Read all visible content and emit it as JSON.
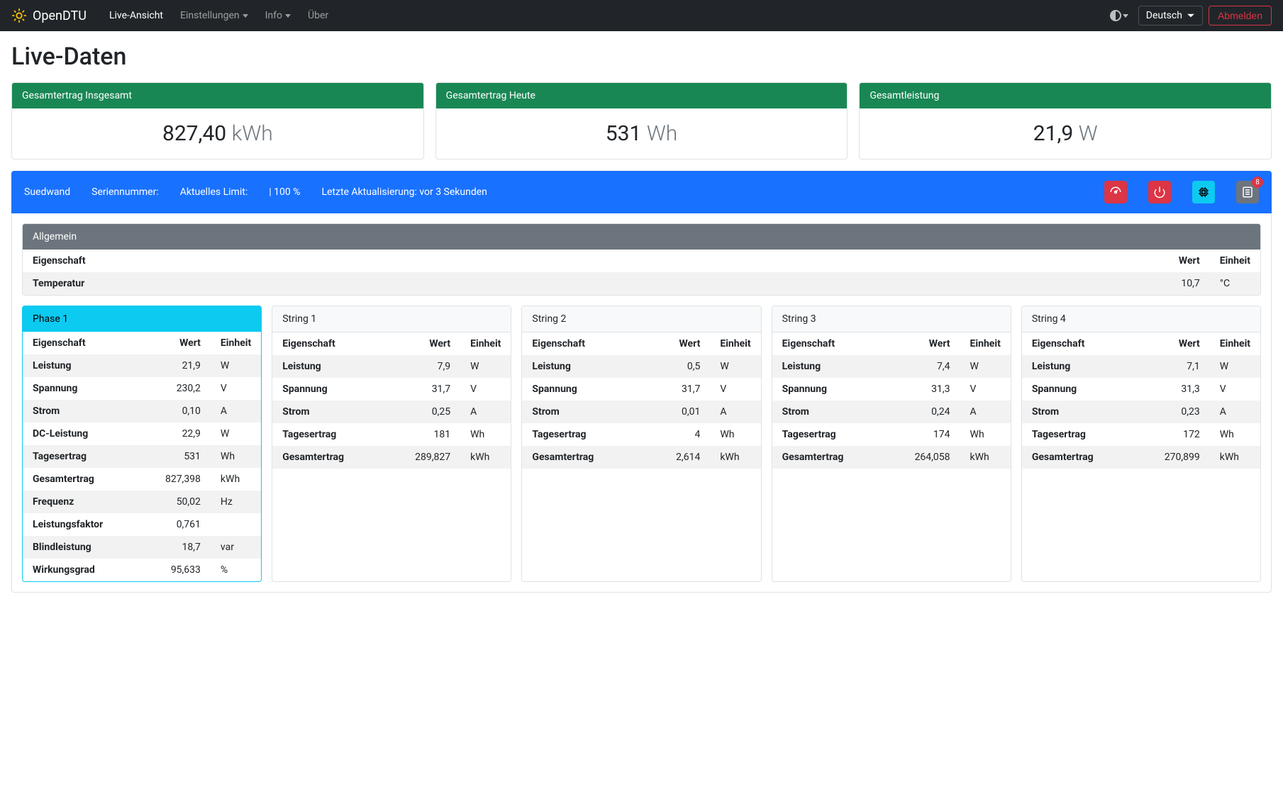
{
  "nav": {
    "brand": "OpenDTU",
    "live": "Live-Ansicht",
    "settings": "Einstellungen",
    "info": "Info",
    "about": "Über",
    "language": "Deutsch",
    "logout": "Abmelden"
  },
  "title": "Live-Daten",
  "summary": [
    {
      "label": "Gesamtertrag Insgesamt",
      "value": "827,40",
      "unit": "kWh"
    },
    {
      "label": "Gesamtertrag Heute",
      "value": "531",
      "unit": "Wh"
    },
    {
      "label": "Gesamtleistung",
      "value": "21,9",
      "unit": "W"
    }
  ],
  "inverter": {
    "name": "Suedwand",
    "serial_label": "Seriennummer:",
    "limit_label": "Aktuelles Limit:",
    "limit_value": "| 100 %",
    "update_label": "Letzte Aktualisierung: vor 3 Sekunden",
    "badge": "8"
  },
  "general": {
    "title": "Allgemein",
    "col_prop": "Eigenschaft",
    "col_val": "Wert",
    "col_unit": "Einheit",
    "rows": [
      {
        "prop": "Temperatur",
        "val": "10,7",
        "unit": "°C"
      }
    ]
  },
  "cols": {
    "prop": "Eigenschaft",
    "val": "Wert",
    "unit": "Einheit"
  },
  "cards": [
    {
      "title": "Phase 1",
      "style": "cyan",
      "rows": [
        {
          "prop": "Leistung",
          "val": "21,9",
          "unit": "W"
        },
        {
          "prop": "Spannung",
          "val": "230,2",
          "unit": "V"
        },
        {
          "prop": "Strom",
          "val": "0,10",
          "unit": "A"
        },
        {
          "prop": "DC-Leistung",
          "val": "22,9",
          "unit": "W"
        },
        {
          "prop": "Tagesertrag",
          "val": "531",
          "unit": "Wh"
        },
        {
          "prop": "Gesamtertrag",
          "val": "827,398",
          "unit": "kWh"
        },
        {
          "prop": "Frequenz",
          "val": "50,02",
          "unit": "Hz"
        },
        {
          "prop": "Leistungsfaktor",
          "val": "0,761",
          "unit": ""
        },
        {
          "prop": "Blindleistung",
          "val": "18,7",
          "unit": "var"
        },
        {
          "prop": "Wirkungsgrad",
          "val": "95,633",
          "unit": "%"
        }
      ]
    },
    {
      "title": "String 1",
      "style": "light",
      "rows": [
        {
          "prop": "Leistung",
          "val": "7,9",
          "unit": "W"
        },
        {
          "prop": "Spannung",
          "val": "31,7",
          "unit": "V"
        },
        {
          "prop": "Strom",
          "val": "0,25",
          "unit": "A"
        },
        {
          "prop": "Tagesertrag",
          "val": "181",
          "unit": "Wh"
        },
        {
          "prop": "Gesamtertrag",
          "val": "289,827",
          "unit": "kWh"
        }
      ]
    },
    {
      "title": "String 2",
      "style": "light",
      "rows": [
        {
          "prop": "Leistung",
          "val": "0,5",
          "unit": "W"
        },
        {
          "prop": "Spannung",
          "val": "31,7",
          "unit": "V"
        },
        {
          "prop": "Strom",
          "val": "0,01",
          "unit": "A"
        },
        {
          "prop": "Tagesertrag",
          "val": "4",
          "unit": "Wh"
        },
        {
          "prop": "Gesamtertrag",
          "val": "2,614",
          "unit": "kWh"
        }
      ]
    },
    {
      "title": "String 3",
      "style": "light",
      "rows": [
        {
          "prop": "Leistung",
          "val": "7,4",
          "unit": "W"
        },
        {
          "prop": "Spannung",
          "val": "31,3",
          "unit": "V"
        },
        {
          "prop": "Strom",
          "val": "0,24",
          "unit": "A"
        },
        {
          "prop": "Tagesertrag",
          "val": "174",
          "unit": "Wh"
        },
        {
          "prop": "Gesamtertrag",
          "val": "264,058",
          "unit": "kWh"
        }
      ]
    },
    {
      "title": "String 4",
      "style": "light",
      "rows": [
        {
          "prop": "Leistung",
          "val": "7,1",
          "unit": "W"
        },
        {
          "prop": "Spannung",
          "val": "31,3",
          "unit": "V"
        },
        {
          "prop": "Strom",
          "val": "0,23",
          "unit": "A"
        },
        {
          "prop": "Tagesertrag",
          "val": "172",
          "unit": "Wh"
        },
        {
          "prop": "Gesamtertrag",
          "val": "270,899",
          "unit": "kWh"
        }
      ]
    }
  ]
}
